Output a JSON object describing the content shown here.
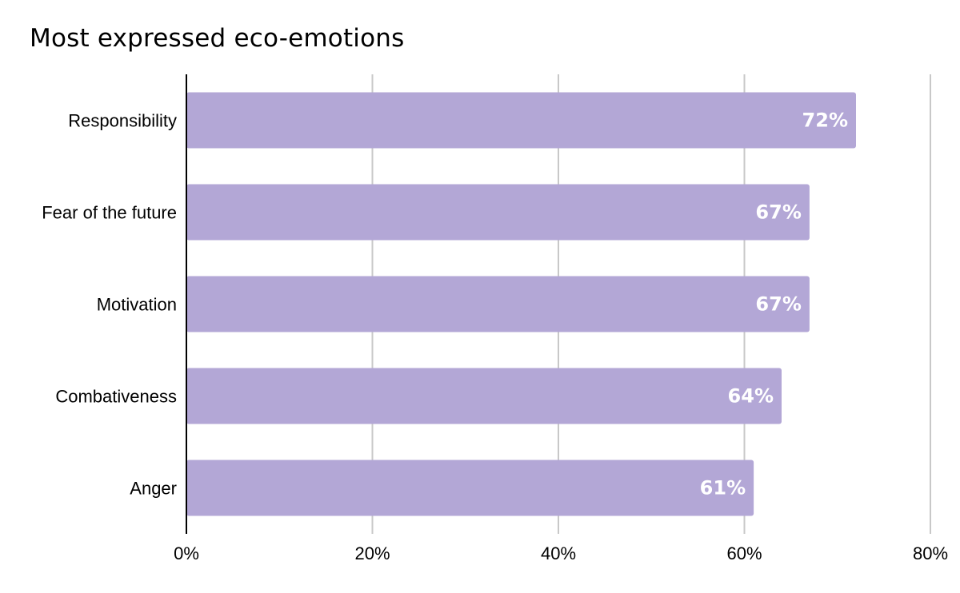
{
  "chart_data": {
    "type": "bar",
    "orientation": "horizontal",
    "title": "Most expressed eco-emotions",
    "categories": [
      "Responsibility",
      "Fear of the future",
      "Motivation",
      "Combativeness",
      "Anger"
    ],
    "values": [
      72,
      67,
      67,
      64,
      61
    ],
    "data_labels": [
      "72%",
      "67%",
      "67%",
      "64%",
      "61%"
    ],
    "xlim": [
      0,
      80
    ],
    "x_ticks": [
      0,
      20,
      40,
      60,
      80
    ],
    "x_tick_labels": [
      "0%",
      "20%",
      "40%",
      "60%",
      "80%"
    ],
    "xlabel": "",
    "ylabel": "",
    "grid": true,
    "bar_color": "#b3a7d6",
    "grid_color": "#c8c8c8",
    "axis_color": "#000000"
  }
}
